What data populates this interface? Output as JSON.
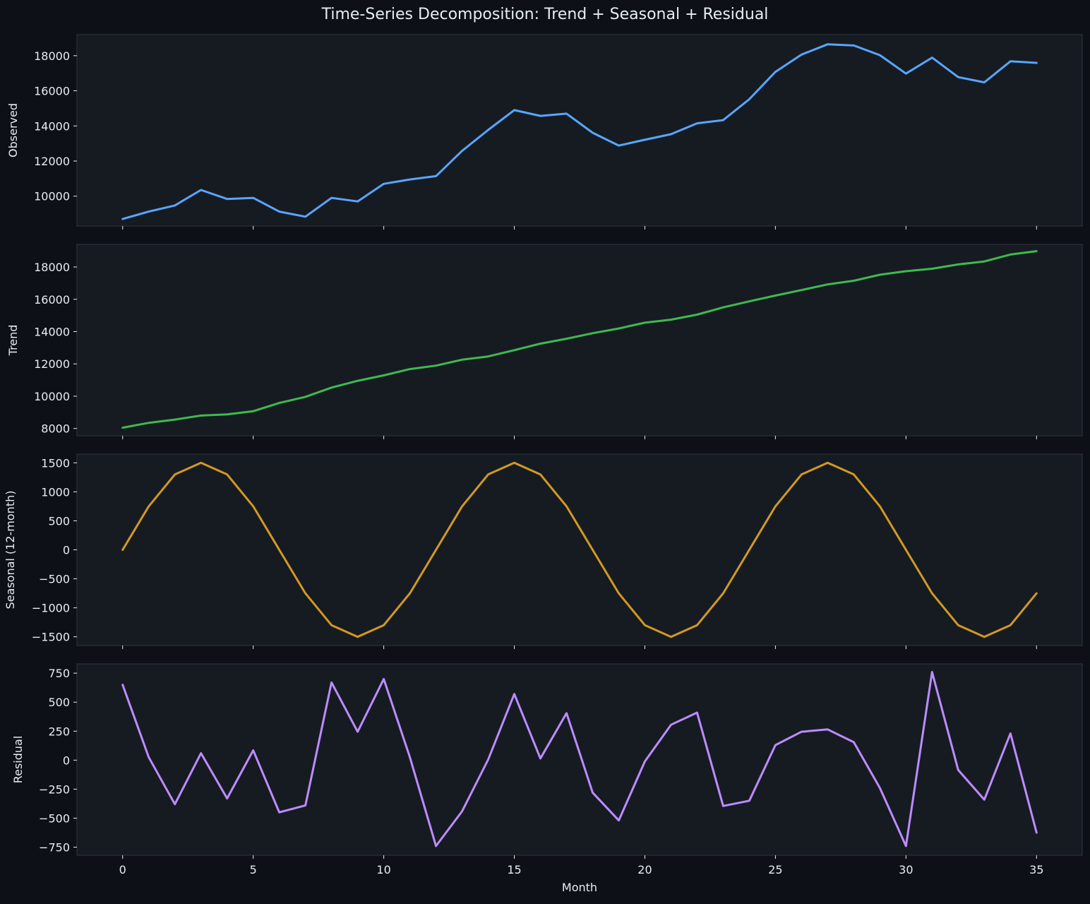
{
  "title": "Time-Series Decomposition: Trend + Seasonal + Residual",
  "xlabel": "Month",
  "colors": {
    "figure_bg": "#0d1117",
    "axes_bg": "#161b22",
    "spine": "#30363d",
    "text": "#e6edf3",
    "observed": "#58a6ff",
    "trend": "#3fb950",
    "seasonal": "#d29922",
    "residual": "#bc8cff"
  },
  "chart_data": [
    {
      "type": "line",
      "ylabel": "Observed",
      "xlim": [
        -1.75,
        36.75
      ],
      "ylim": [
        8300,
        19200
      ],
      "xticks": [
        0,
        5,
        10,
        15,
        20,
        25,
        30,
        35
      ],
      "show_xtick_labels": false,
      "yticks": [
        10000,
        12000,
        14000,
        16000,
        18000
      ],
      "grid": false,
      "series": [
        {
          "x": [
            0,
            1,
            2,
            3,
            4,
            5,
            6,
            7,
            8,
            9,
            10,
            11,
            12,
            13,
            14,
            15,
            16,
            17,
            18,
            19,
            20,
            21,
            22,
            23,
            24,
            25,
            26,
            27,
            28,
            29,
            30,
            31,
            32,
            33,
            34,
            35
          ],
          "values": [
            8700,
            9120,
            9470,
            10350,
            9840,
            9900,
            9120,
            8830,
            9900,
            9700,
            10700,
            10950,
            11140,
            12580,
            13770,
            14900,
            14570,
            14700,
            13610,
            12880,
            13210,
            13530,
            14150,
            14330,
            15520,
            17080,
            18060,
            18650,
            18580,
            18030,
            16980,
            17890,
            16780,
            16480,
            17680,
            17590
          ]
        }
      ]
    },
    {
      "type": "line",
      "ylabel": "Trend",
      "xlim": [
        -1.75,
        36.75
      ],
      "ylim": [
        7550,
        19400
      ],
      "xticks": [
        0,
        5,
        10,
        15,
        20,
        25,
        30,
        35
      ],
      "show_xtick_labels": false,
      "yticks": [
        8000,
        10000,
        12000,
        14000,
        16000,
        18000
      ],
      "grid": false,
      "series": [
        {
          "x": [
            0,
            1,
            2,
            3,
            4,
            5,
            6,
            7,
            8,
            9,
            10,
            11,
            12,
            13,
            14,
            15,
            16,
            17,
            18,
            19,
            20,
            21,
            22,
            23,
            24,
            25,
            26,
            27,
            28,
            29,
            30,
            31,
            32,
            33,
            34,
            35
          ],
          "values": [
            8050,
            8350,
            8550,
            8800,
            8870,
            9070,
            9580,
            9960,
            10530,
            10950,
            11290,
            11680,
            11890,
            12260,
            12460,
            12850,
            13250,
            13560,
            13900,
            14190,
            14550,
            14740,
            15050,
            15500,
            15870,
            16230,
            16570,
            16920,
            17150,
            17520,
            17740,
            17890,
            18160,
            18340,
            18770,
            18980
          ]
        }
      ]
    },
    {
      "type": "line",
      "ylabel": "Seasonal (12-month)",
      "xlim": [
        -1.75,
        36.75
      ],
      "ylim": [
        -1650,
        1650
      ],
      "xticks": [
        0,
        5,
        10,
        15,
        20,
        25,
        30,
        35
      ],
      "show_xtick_labels": false,
      "yticks": [
        -1500,
        -1000,
        -500,
        0,
        500,
        1000,
        1500
      ],
      "grid": false,
      "series": [
        {
          "x": [
            0,
            1,
            2,
            3,
            4,
            5,
            6,
            7,
            8,
            9,
            10,
            11,
            12,
            13,
            14,
            15,
            16,
            17,
            18,
            19,
            20,
            21,
            22,
            23,
            24,
            25,
            26,
            27,
            28,
            29,
            30,
            31,
            32,
            33,
            34,
            35
          ],
          "values": [
            0,
            750,
            1299,
            1500,
            1299,
            750,
            0,
            -750,
            -1299,
            -1500,
            -1299,
            -750,
            0,
            750,
            1299,
            1500,
            1299,
            750,
            0,
            -750,
            -1299,
            -1500,
            -1299,
            -750,
            0,
            750,
            1299,
            1500,
            1299,
            750,
            0,
            -750,
            -1299,
            -1500,
            -1299,
            -750
          ]
        }
      ]
    },
    {
      "type": "line",
      "ylabel": "Residual",
      "xlim": [
        -1.75,
        36.75
      ],
      "ylim": [
        -820,
        830
      ],
      "xticks": [
        0,
        5,
        10,
        15,
        20,
        25,
        30,
        35
      ],
      "show_xtick_labels": true,
      "yticks": [
        -750,
        -500,
        -250,
        0,
        250,
        500,
        750
      ],
      "grid": false,
      "series": [
        {
          "x": [
            0,
            1,
            2,
            3,
            4,
            5,
            6,
            7,
            8,
            9,
            10,
            11,
            12,
            13,
            14,
            15,
            16,
            17,
            18,
            19,
            20,
            21,
            22,
            23,
            24,
            25,
            26,
            27,
            28,
            29,
            30,
            31,
            32,
            33,
            34,
            35
          ],
          "values": [
            650,
            25,
            -380,
            60,
            -330,
            85,
            -450,
            -390,
            670,
            245,
            700,
            25,
            -740,
            -440,
            5,
            570,
            15,
            405,
            -280,
            -520,
            -10,
            305,
            410,
            -395,
            -350,
            130,
            245,
            265,
            155,
            -240,
            -740,
            760,
            -85,
            -340,
            230,
            -625
          ]
        }
      ]
    }
  ]
}
